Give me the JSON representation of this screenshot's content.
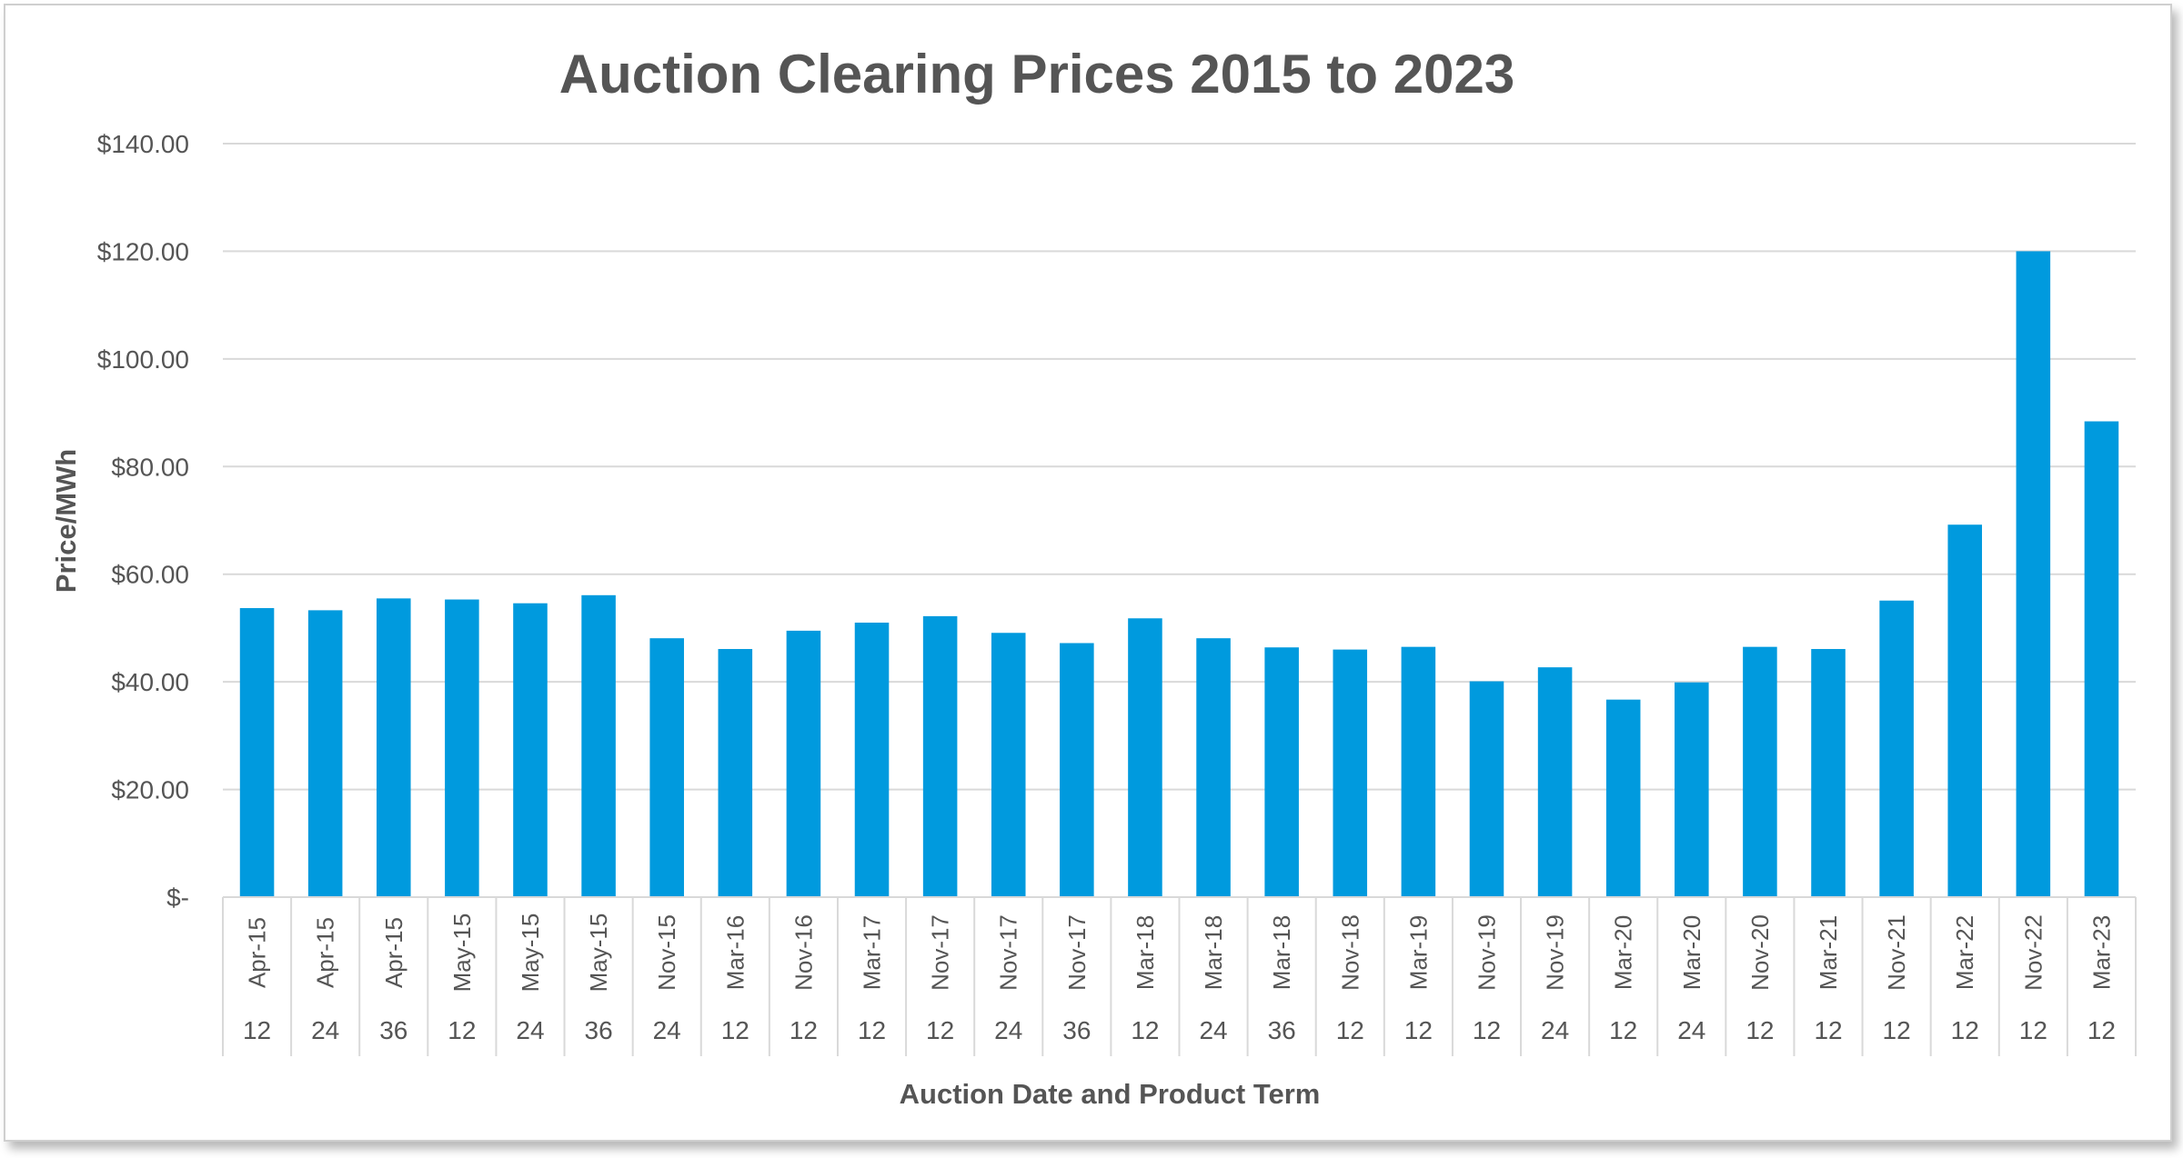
{
  "chart_data": {
    "type": "bar",
    "title": "Auction Clearing Prices 2015 to 2023",
    "xlabel": "Auction Date and Product Term",
    "ylabel": "Price/MWh",
    "ylim": [
      0,
      140
    ],
    "yticks": [
      {
        "value": 0,
        "label": "$-"
      },
      {
        "value": 20,
        "label": "$20.00"
      },
      {
        "value": 40,
        "label": "$40.00"
      },
      {
        "value": 60,
        "label": "$60.00"
      },
      {
        "value": 80,
        "label": "$80.00"
      },
      {
        "value": 100,
        "label": "$100.00"
      },
      {
        "value": 120,
        "label": "$120.00"
      },
      {
        "value": 140,
        "label": "$140.00"
      }
    ],
    "grid": true,
    "bar_color": "#009ADE",
    "categories": [
      {
        "date": "Apr-15",
        "term": "12"
      },
      {
        "date": "Apr-15",
        "term": "24"
      },
      {
        "date": "Apr-15",
        "term": "36"
      },
      {
        "date": "May-15",
        "term": "12"
      },
      {
        "date": "May-15",
        "term": "24"
      },
      {
        "date": "May-15",
        "term": "36"
      },
      {
        "date": "Nov-15",
        "term": "24"
      },
      {
        "date": "Mar-16",
        "term": "12"
      },
      {
        "date": "Nov-16",
        "term": "12"
      },
      {
        "date": "Mar-17",
        "term": "12"
      },
      {
        "date": "Nov-17",
        "term": "12"
      },
      {
        "date": "Nov-17",
        "term": "24"
      },
      {
        "date": "Nov-17",
        "term": "36"
      },
      {
        "date": "Mar-18",
        "term": "12"
      },
      {
        "date": "Mar-18",
        "term": "24"
      },
      {
        "date": "Mar-18",
        "term": "36"
      },
      {
        "date": "Nov-18",
        "term": "12"
      },
      {
        "date": "Mar-19",
        "term": "12"
      },
      {
        "date": "Nov-19",
        "term": "12"
      },
      {
        "date": "Nov-19",
        "term": "24"
      },
      {
        "date": "Mar-20",
        "term": "12"
      },
      {
        "date": "Mar-20",
        "term": "24"
      },
      {
        "date": "Nov-20",
        "term": "12"
      },
      {
        "date": "Mar-21",
        "term": "12"
      },
      {
        "date": "Nov-21",
        "term": "12"
      },
      {
        "date": "Mar-22",
        "term": "12"
      },
      {
        "date": "Nov-22",
        "term": "12"
      },
      {
        "date": "Mar-23",
        "term": "12"
      }
    ],
    "values": [
      53.7,
      53.3,
      55.5,
      55.3,
      54.6,
      56.1,
      48.1,
      46.1,
      49.5,
      51.0,
      52.2,
      49.1,
      47.2,
      51.8,
      48.1,
      46.4,
      46.0,
      46.5,
      40.1,
      42.7,
      36.7,
      39.9,
      46.5,
      46.1,
      55.1,
      69.2,
      120.0,
      88.4
    ]
  }
}
